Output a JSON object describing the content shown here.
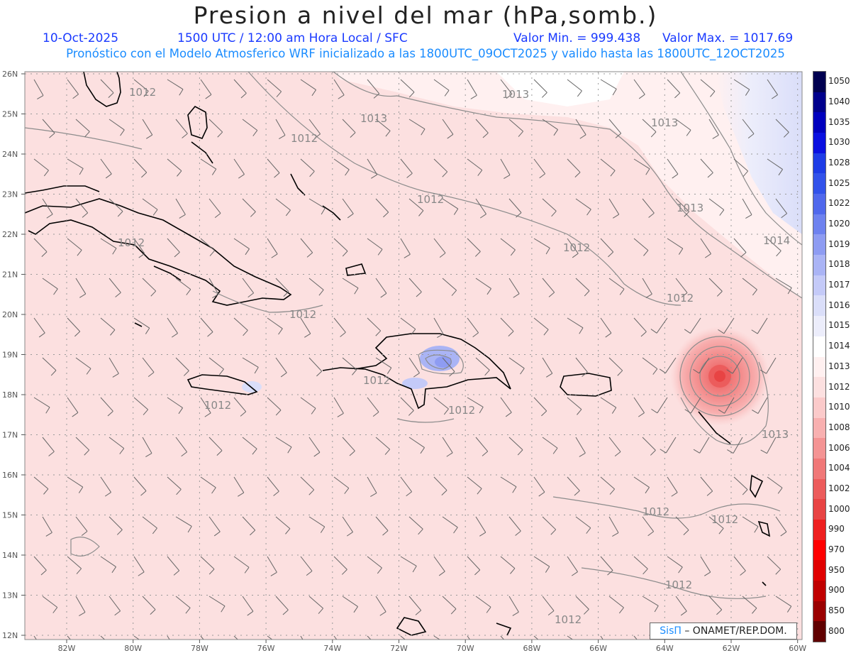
{
  "header": {
    "title": "Presion a nivel del mar (hPa,somb.)",
    "date": "10-Oct-2025",
    "time_info": "1500 UTC / 12:00 am Hora Local / SFC",
    "min_label": "Valor Min. = 999.438",
    "max_label": "Valor Max. = 1017.69",
    "model_info": "Pronóstico con el Modelo Atmosferico WRF inicializado a las 1800UTC_09OCT2025 y valido hasta las  1800UTC_12OCT2025"
  },
  "map": {
    "lat_labels": [
      "26N",
      "25N",
      "24N",
      "23N",
      "22N",
      "21N",
      "20N",
      "19N",
      "18N",
      "17N",
      "16N",
      "15N",
      "14N",
      "13N",
      "12N"
    ],
    "lon_labels": [
      "82W",
      "80W",
      "78W",
      "76W",
      "74W",
      "72W",
      "70W",
      "68W",
      "66W",
      "64W",
      "62W",
      "60W"
    ],
    "contour_labels": [
      "1012",
      "1013",
      "1013",
      "1012",
      "1013",
      "1012",
      "1013",
      "1012",
      "1014",
      "1012",
      "1012",
      "1012",
      "1012",
      "1012",
      "1012",
      "1013",
      "1012",
      "1012",
      "1012",
      "1012"
    ],
    "colors": {
      "background_fill": "#fce0e0",
      "land_stroke": "#000000",
      "contour": "#888888",
      "grid": "#999999"
    }
  },
  "colorbar": {
    "levels": [
      "1050",
      "1040",
      "1035",
      "1030",
      "1028",
      "1025",
      "1022",
      "1020",
      "1019",
      "1018",
      "1017",
      "1016",
      "1015",
      "1014",
      "1013",
      "1012",
      "1010",
      "1008",
      "1006",
      "1004",
      "1002",
      "1000",
      "990",
      "970",
      "950",
      "900",
      "850",
      "800"
    ],
    "colors": [
      "#000050",
      "#00008c",
      "#0000be",
      "#0a10e0",
      "#1e3ce6",
      "#3252ea",
      "#5068ec",
      "#6e82ef",
      "#8e9cf2",
      "#aab4f5",
      "#c4caf8",
      "#dadef9",
      "#ecedfb",
      "#ffffff",
      "#fff0f0",
      "#fce0e0",
      "#fbcaca",
      "#f8b0b0",
      "#f49494",
      "#f07878",
      "#ec5c5c",
      "#e84444",
      "#ee2020",
      "#ff0000",
      "#e00000",
      "#c00000",
      "#9a0000",
      "#600000"
    ]
  },
  "credit": {
    "logo": "SisΠ",
    "text": " – ONAMET/REP.DOM."
  }
}
